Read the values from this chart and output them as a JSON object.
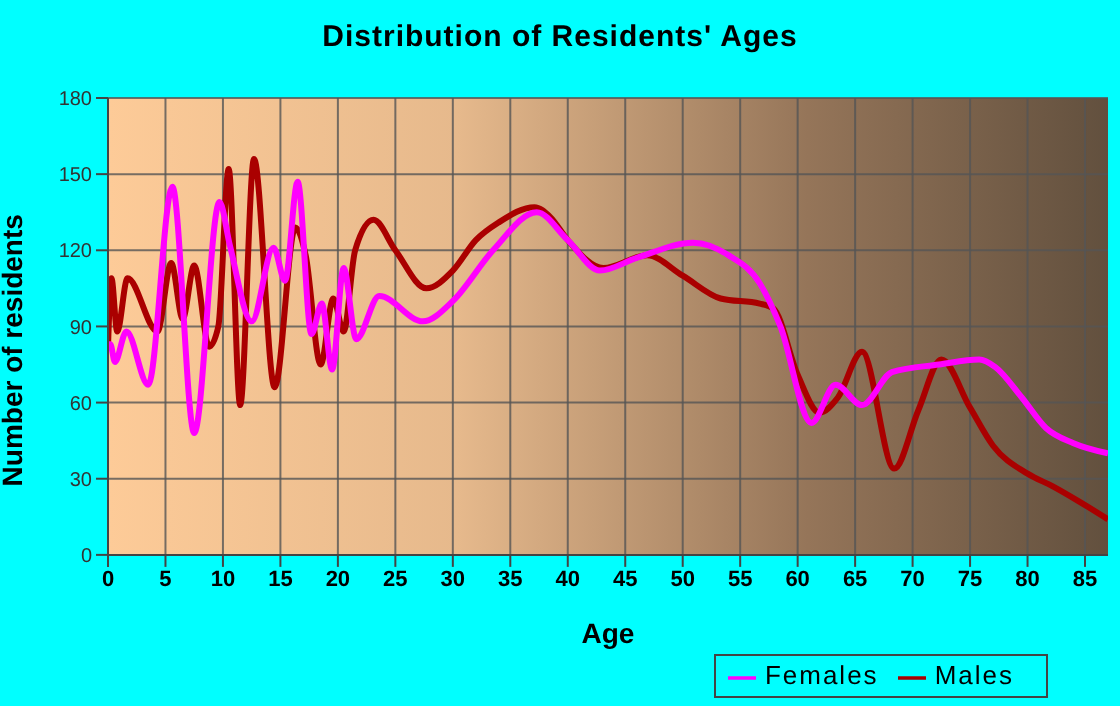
{
  "chart_data": {
    "type": "line",
    "title": "Distribution of Residents' Ages",
    "xlabel": "Age",
    "ylabel": "Number of residents",
    "xlim": [
      0,
      87
    ],
    "xticks": [
      0,
      5,
      10,
      15,
      20,
      25,
      30,
      35,
      40,
      45,
      50,
      55,
      60,
      65,
      70,
      75,
      80,
      85
    ],
    "ylim": [
      0,
      180
    ],
    "yticks": [
      0,
      30,
      60,
      90,
      120,
      150,
      180
    ],
    "grid": true,
    "legend": "bottom right",
    "marker": "none",
    "line_style": "solid",
    "series": [
      {
        "name": "Males",
        "color": "#aa0000",
        "x": [
          0,
          0.3,
          0.8,
          1.7,
          4.3,
          5.5,
          6.5,
          7.5,
          8.8,
          9.6,
          10.5,
          11.5,
          12.7,
          14.5,
          16.3,
          17.2,
          18.5,
          19.6,
          20.5,
          21.5,
          23.1,
          25,
          27.7,
          30,
          32,
          34,
          37.1,
          38.5,
          40,
          43.1,
          46.9,
          50,
          53.3,
          56.7,
          57.9,
          60,
          61.9,
          63.5,
          65.6,
          68.4,
          70.5,
          72.5,
          75,
          77,
          80,
          82.2,
          84.5,
          87
        ],
        "values": [
          82,
          109,
          88,
          109,
          88,
          115,
          93,
          114,
          82,
          90,
          152,
          59,
          156,
          66,
          129,
          118,
          75,
          101,
          88,
          120,
          132,
          120,
          105,
          112,
          124,
          131,
          137,
          133,
          124,
          113,
          118,
          110,
          101,
          99,
          97,
          71,
          56,
          62,
          80,
          34,
          57,
          77,
          58,
          43,
          32,
          27,
          21,
          14
        ]
      },
      {
        "name": "Females",
        "color": "#ff00ff",
        "x": [
          0,
          0.2,
          0.6,
          1.6,
          3.5,
          5.6,
          7.5,
          9.7,
          10.6,
          12.5,
          14.4,
          15.4,
          16.5,
          17.7,
          18.6,
          19.5,
          20.5,
          21.6,
          23.6,
          27.4,
          30,
          33.5,
          37.3,
          40,
          42.8,
          46,
          50.9,
          54,
          56.7,
          58.5,
          61.2,
          63.3,
          65.6,
          68.2,
          72.3,
          75.8,
          77.2,
          79.5,
          81.6,
          84,
          87
        ],
        "values": [
          83,
          83,
          76,
          88,
          67,
          145,
          48,
          139,
          122,
          92,
          121,
          108,
          147,
          87,
          99,
          73,
          113,
          85,
          102,
          92,
          100,
          120,
          135,
          124,
          112,
          117,
          123,
          118,
          107,
          90,
          52,
          67,
          59,
          72,
          75,
          77,
          74,
          62,
          50,
          44,
          40
        ]
      }
    ]
  }
}
